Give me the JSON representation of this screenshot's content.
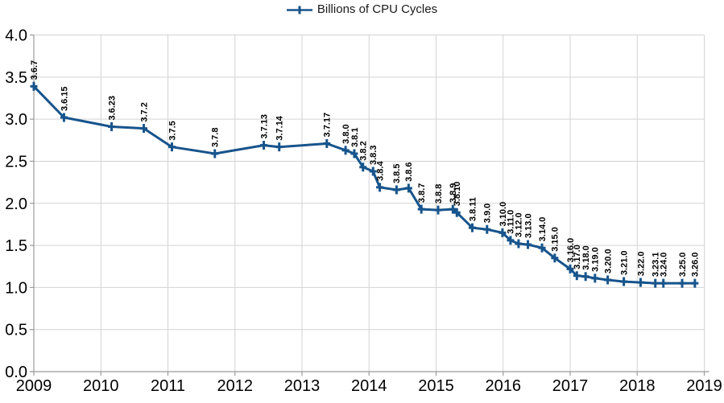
{
  "legend": {
    "label": "Billions of CPU Cycles"
  },
  "colors": {
    "series": "#17548c",
    "gridline": "#d3d3d3",
    "axis": "#9b9b9b",
    "text": "#000000"
  },
  "chart_data": {
    "type": "line",
    "title": "",
    "xlabel": "",
    "ylabel": "",
    "legend_position": "top",
    "grid": true,
    "xlim": [
      2009,
      2019
    ],
    "ylim": [
      0,
      4
    ],
    "x_ticks": [
      "2009",
      "2010",
      "2011",
      "2012",
      "2013",
      "2014",
      "2015",
      "2016",
      "2017",
      "2018",
      "2019"
    ],
    "y_ticks": [
      "0.0",
      "0.5",
      "1.0",
      "1.5",
      "2.0",
      "2.5",
      "3.0",
      "3.5",
      "4.0"
    ],
    "series": [
      {
        "name": "Billions of CPU Cycles",
        "color": "#17548c",
        "marker": "plus",
        "points": [
          {
            "label": "3.6.7",
            "x": 2009.0,
            "y": 3.39
          },
          {
            "label": "3.6.15",
            "x": 2009.45,
            "y": 3.02
          },
          {
            "label": "3.6.23",
            "x": 2010.16,
            "y": 2.91
          },
          {
            "label": "3.7.2",
            "x": 2010.64,
            "y": 2.89
          },
          {
            "label": "3.7.5",
            "x": 2011.06,
            "y": 2.67
          },
          {
            "label": "3.7.8",
            "x": 2011.7,
            "y": 2.59
          },
          {
            "label": "3.7.13",
            "x": 2012.43,
            "y": 2.69
          },
          {
            "label": "3.7.14",
            "x": 2012.66,
            "y": 2.67
          },
          {
            "label": "3.7.17",
            "x": 2013.37,
            "y": 2.71
          },
          {
            "label": "3.8.0",
            "x": 2013.65,
            "y": 2.63
          },
          {
            "label": "3.8.1",
            "x": 2013.78,
            "y": 2.59
          },
          {
            "label": "3.8.2",
            "x": 2013.91,
            "y": 2.43
          },
          {
            "label": "3.8.3",
            "x": 2014.06,
            "y": 2.38
          },
          {
            "label": "3.8.4",
            "x": 2014.16,
            "y": 2.19
          },
          {
            "label": "3.8.5",
            "x": 2014.41,
            "y": 2.16
          },
          {
            "label": "3.8.6",
            "x": 2014.59,
            "y": 2.18
          },
          {
            "label": "3.8.7",
            "x": 2014.78,
            "y": 1.93
          },
          {
            "label": "3.8.8",
            "x": 2015.03,
            "y": 1.92
          },
          {
            "label": "3.8.9",
            "x": 2015.25,
            "y": 1.93
          },
          {
            "label": "3.8.10",
            "x": 2015.31,
            "y": 1.89
          },
          {
            "label": "3.8.11",
            "x": 2015.54,
            "y": 1.71
          },
          {
            "label": "3.9.0",
            "x": 2015.76,
            "y": 1.69
          },
          {
            "label": "3.10.0",
            "x": 2015.99,
            "y": 1.65
          },
          {
            "label": "3.11.0",
            "x": 2016.11,
            "y": 1.56
          },
          {
            "label": "3.12.0",
            "x": 2016.23,
            "y": 1.52
          },
          {
            "label": "3.13.0",
            "x": 2016.37,
            "y": 1.51
          },
          {
            "label": "3.14.0",
            "x": 2016.58,
            "y": 1.47
          },
          {
            "label": "3.15.0",
            "x": 2016.77,
            "y": 1.35
          },
          {
            "label": "3.16.0",
            "x": 2017.0,
            "y": 1.22
          },
          {
            "label": "3.17.0",
            "x": 2017.1,
            "y": 1.14
          },
          {
            "label": "3.18.0",
            "x": 2017.23,
            "y": 1.13
          },
          {
            "label": "3.19.0",
            "x": 2017.37,
            "y": 1.11
          },
          {
            "label": "3.20.0",
            "x": 2017.56,
            "y": 1.09
          },
          {
            "label": "3.21.0",
            "x": 2017.8,
            "y": 1.07
          },
          {
            "label": "3.22.0",
            "x": 2018.05,
            "y": 1.06
          },
          {
            "label": "3.23.1",
            "x": 2018.27,
            "y": 1.05
          },
          {
            "label": "3.24.0",
            "x": 2018.39,
            "y": 1.05
          },
          {
            "label": "3.25.0",
            "x": 2018.67,
            "y": 1.05
          },
          {
            "label": "3.26.0",
            "x": 2018.86,
            "y": 1.05
          }
        ]
      }
    ]
  }
}
